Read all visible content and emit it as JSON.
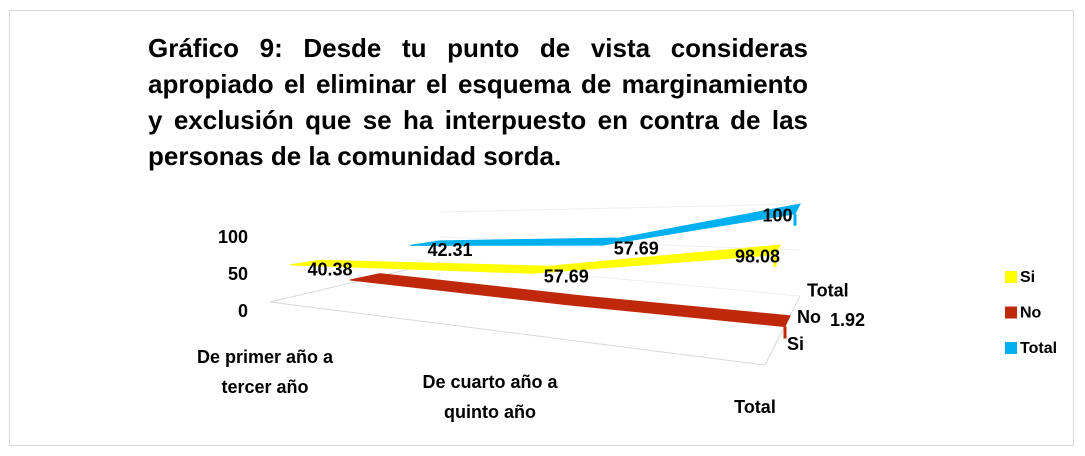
{
  "chart_data": {
    "type": "line3d",
    "title": "Gráfico 9: Desde tu punto de vista consideras apropiado el eliminar el esquema de marginamiento y exclusión que se ha interpuesto en contra de las personas de la comunidad sorda.",
    "categories": [
      "De primer año a tercer año",
      "De cuarto año a quinto año",
      "Total"
    ],
    "series": [
      {
        "name": "Si",
        "color": "#ffff00",
        "values": [
          40.38,
          57.69,
          98.08
        ]
      },
      {
        "name": "No",
        "color": "#c0280c",
        "values": [
          1.92,
          0,
          1.92
        ],
        "value_labels": [
          null,
          null,
          "1.92"
        ]
      },
      {
        "name": "Total",
        "color": "#00b0f0",
        "values": [
          42.31,
          57.69,
          100
        ]
      }
    ],
    "ylim": [
      0,
      100
    ],
    "yticks": [
      0,
      50,
      100
    ],
    "legend": "right"
  }
}
